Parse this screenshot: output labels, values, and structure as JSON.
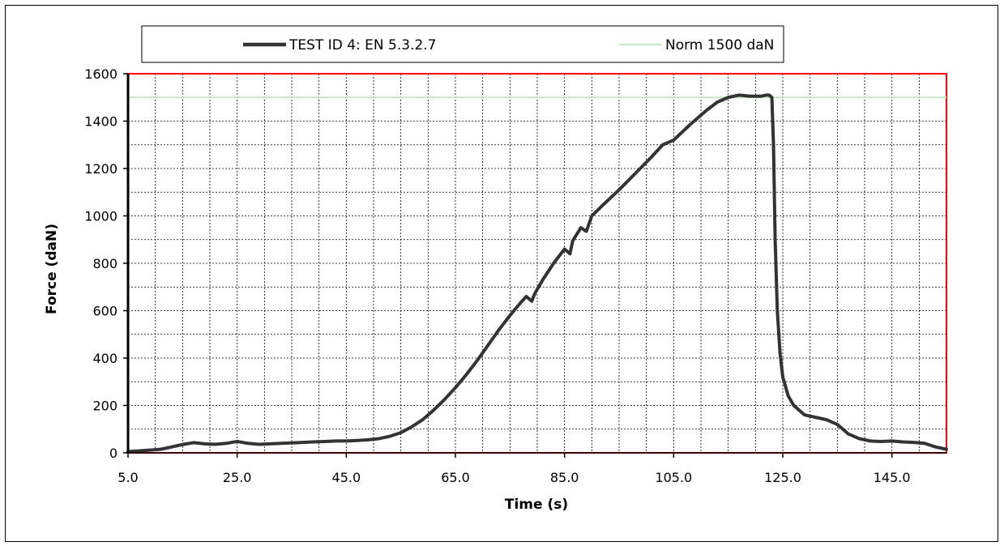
{
  "chart_data": {
    "type": "line",
    "title": "",
    "xlabel": "Time (s)",
    "ylabel": "Force (daN)",
    "xlim": [
      5.0,
      155.0
    ],
    "ylim": [
      0,
      1600
    ],
    "x_ticks": [
      5.0,
      25.0,
      45.0,
      65.0,
      85.0,
      105.0,
      125.0,
      145.0
    ],
    "x_tick_labels": [
      "5.0",
      "25.0",
      "45.0",
      "65.0",
      "85.0",
      "105.0",
      "125.0",
      "145.0"
    ],
    "y_ticks": [
      0,
      200,
      400,
      600,
      800,
      1000,
      1200,
      1400,
      1600
    ],
    "y_tick_labels": [
      "0",
      "200",
      "400",
      "600",
      "800",
      "1000",
      "1200",
      "1400",
      "1600"
    ],
    "grid": true,
    "legend_position": "top",
    "colors": {
      "test_series": "#333333",
      "norm_series": "#c6e6c6",
      "plot_border": "#ff0000",
      "grid": "#000000"
    },
    "series": [
      {
        "name": "TEST ID 4: EN 5.3.2.7",
        "x": [
          5,
          8,
          11,
          13,
          15,
          17,
          19,
          21,
          23,
          25,
          27,
          29,
          31,
          33,
          35,
          37,
          39,
          41,
          43,
          45,
          47,
          49,
          51,
          53,
          55,
          57,
          59,
          61,
          63,
          65,
          67,
          69,
          71,
          73,
          75,
          77,
          78,
          79,
          79.5,
          81,
          83,
          85,
          86,
          86.5,
          88,
          89,
          90,
          92,
          95,
          98,
          101,
          103,
          104,
          105,
          108,
          111,
          113,
          115,
          117,
          119,
          121,
          122,
          122.5,
          123,
          123.3,
          123.6,
          124,
          124.5,
          125,
          126,
          127,
          128,
          129,
          131,
          133,
          135,
          137,
          139,
          141,
          143,
          145,
          147,
          149,
          151,
          153,
          155
        ],
        "y": [
          5,
          10,
          15,
          25,
          35,
          43,
          38,
          36,
          40,
          48,
          40,
          36,
          38,
          40,
          42,
          44,
          46,
          48,
          50,
          50,
          52,
          55,
          60,
          70,
          85,
          110,
          140,
          180,
          225,
          275,
          330,
          390,
          455,
          520,
          580,
          635,
          660,
          640,
          670,
          730,
          800,
          860,
          840,
          895,
          950,
          935,
          1000,
          1045,
          1110,
          1180,
          1250,
          1300,
          1310,
          1320,
          1385,
          1445,
          1480,
          1500,
          1510,
          1505,
          1505,
          1510,
          1510,
          1500,
          1300,
          900,
          600,
          420,
          320,
          240,
          200,
          180,
          160,
          150,
          140,
          120,
          80,
          60,
          50,
          48,
          50,
          46,
          44,
          40,
          25,
          15
        ]
      },
      {
        "name": "Norm 1500 daN",
        "x": [
          5,
          155
        ],
        "y": [
          1500,
          1500
        ]
      }
    ]
  }
}
